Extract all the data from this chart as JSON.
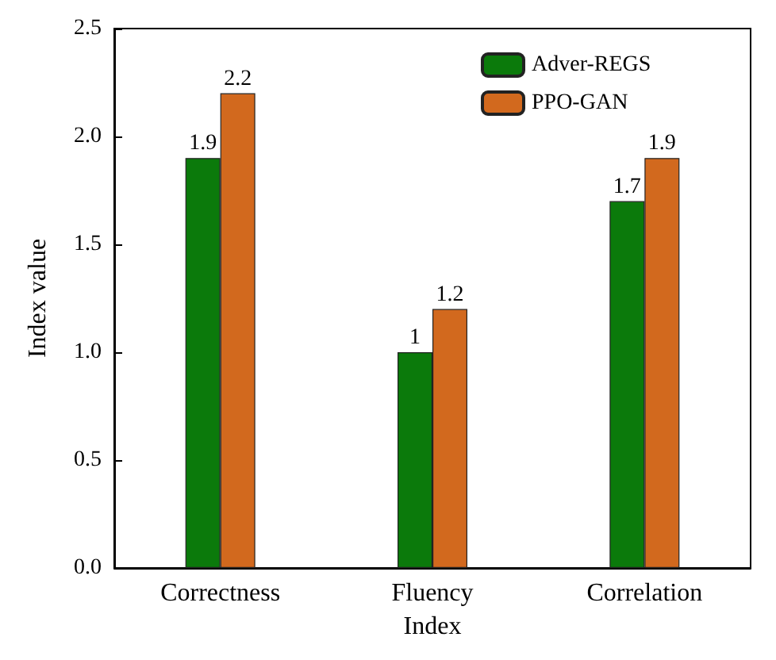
{
  "chart_data": {
    "type": "bar",
    "xlabel": "Index",
    "ylabel": "Index value",
    "categories": [
      "Correctness",
      "Fluency",
      "Correlation"
    ],
    "series": [
      {
        "name": "Adver-REGS",
        "color": "#0b7a0b",
        "values": [
          1.9,
          1,
          1.7
        ]
      },
      {
        "name": "PPO-GAN",
        "color": "#d2691e",
        "values": [
          2.2,
          1.2,
          1.9
        ]
      }
    ],
    "ylim": [
      0,
      2.5
    ],
    "yticks": [
      {
        "value": 0,
        "label": "0.0"
      },
      {
        "value": 0.5,
        "label": "0.5"
      },
      {
        "value": 1,
        "label": "1.0"
      },
      {
        "value": 1.5,
        "label": "1.5"
      },
      {
        "value": 2,
        "label": "2.0"
      },
      {
        "value": 2.5,
        "label": "2.5"
      }
    ],
    "data_labels": true,
    "legend": "top",
    "grid": false
  }
}
